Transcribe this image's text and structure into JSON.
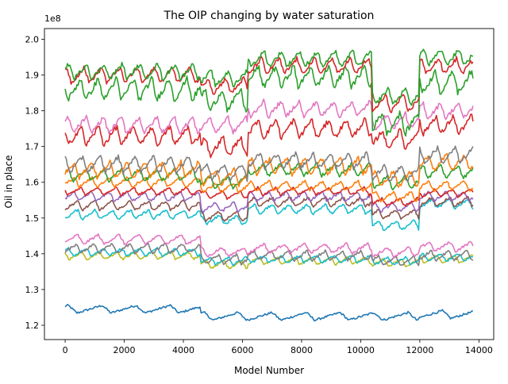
{
  "chart_data": {
    "type": "line",
    "title": "The OIP changing by water saturation",
    "xlabel": "Model Number",
    "ylabel": "Oil in place",
    "y_multiplier_label": "1e8",
    "xlim": [
      -700,
      14500
    ],
    "ylim": [
      1.16,
      2.03
    ],
    "x_ticks": [
      0,
      2000,
      4000,
      6000,
      8000,
      10000,
      12000,
      14000
    ],
    "x_tick_labels": [
      "0",
      "2000",
      "4000",
      "6000",
      "8000",
      "10000",
      "12000",
      "14000"
    ],
    "y_ticks": [
      1.2,
      1.3,
      1.4,
      1.5,
      1.6,
      1.7,
      1.8,
      1.9,
      2.0
    ],
    "y_tick_labels": [
      "1.2",
      "1.3",
      "1.4",
      "1.5",
      "1.6",
      "1.7",
      "1.8",
      "1.9",
      "2.0"
    ],
    "grid": false,
    "x_max": 13800,
    "segment_boundaries": [
      4600,
      6200,
      10400,
      12000
    ],
    "series": [
      {
        "color": "#1f77b4",
        "seg_means": [
          1.245,
          1.225,
          1.225,
          1.225,
          1.23
        ],
        "amp": 0.012,
        "period": 1150
      },
      {
        "color": "#bcbd22",
        "seg_means": [
          1.395,
          1.37,
          1.38,
          1.375,
          1.385
        ],
        "amp": 0.012,
        "period": 600
      },
      {
        "color": "#17becf",
        "seg_means": [
          1.405,
          1.38,
          1.385,
          1.38,
          1.39
        ],
        "amp": 0.012,
        "period": 600
      },
      {
        "color": "#7f7f7f",
        "seg_means": [
          1.415,
          1.385,
          1.395,
          1.38,
          1.395
        ],
        "amp": 0.015,
        "period": 600
      },
      {
        "color": "#e377c2",
        "seg_means": [
          1.44,
          1.405,
          1.415,
          1.405,
          1.42
        ],
        "amp": 0.015,
        "period": 700
      },
      {
        "color": "#17becf",
        "seg_means": [
          1.51,
          1.495,
          1.525,
          1.48,
          1.54
        ],
        "amp": 0.015,
        "period": 600
      },
      {
        "color": "#8c564b",
        "seg_means": [
          1.535,
          1.505,
          1.545,
          1.51,
          1.545
        ],
        "amp": 0.015,
        "period": 600
      },
      {
        "color": "#9467bd",
        "seg_means": [
          1.56,
          1.53,
          1.56,
          1.53,
          1.56
        ],
        "amp": 0.015,
        "period": 600
      },
      {
        "color": "#d62728",
        "seg_means": [
          1.575,
          1.565,
          1.575,
          1.545,
          1.57
        ],
        "amp": 0.012,
        "period": 600
      },
      {
        "color": "#ff7f0e",
        "seg_means": [
          1.6,
          1.585,
          1.59,
          1.56,
          1.59
        ],
        "amp": 0.015,
        "period": 600
      },
      {
        "color": "#2ca02c",
        "seg_means": [
          1.62,
          1.6,
          1.635,
          1.6,
          1.63
        ],
        "amp": 0.02,
        "period": 600
      },
      {
        "color": "#ff7f0e",
        "seg_means": [
          1.635,
          1.615,
          1.645,
          1.61,
          1.655
        ],
        "amp": 0.025,
        "period": 600
      },
      {
        "color": "#7f7f7f",
        "seg_means": [
          1.65,
          1.63,
          1.66,
          1.625,
          1.675
        ],
        "amp": 0.025,
        "period": 600
      },
      {
        "color": "#d62728",
        "seg_means": [
          1.73,
          1.7,
          1.75,
          1.72,
          1.76
        ],
        "amp": 0.03,
        "period": 600
      },
      {
        "color": "#e377c2",
        "seg_means": [
          1.76,
          1.76,
          1.805,
          1.77,
          1.8
        ],
        "amp": 0.025,
        "period": 600
      },
      {
        "color": "#2ca02c",
        "seg_means": [
          1.86,
          1.83,
          1.895,
          1.765,
          1.88
        ],
        "amp": 0.035,
        "period": 600
      },
      {
        "color": "#d62728",
        "seg_means": [
          1.9,
          1.87,
          1.925,
          1.82,
          1.925
        ],
        "amp": 0.025,
        "period": 600
      },
      {
        "color": "#2ca02c",
        "seg_means": [
          1.91,
          1.89,
          1.945,
          1.84,
          1.95
        ],
        "amp": 0.025,
        "period": 600
      }
    ]
  }
}
